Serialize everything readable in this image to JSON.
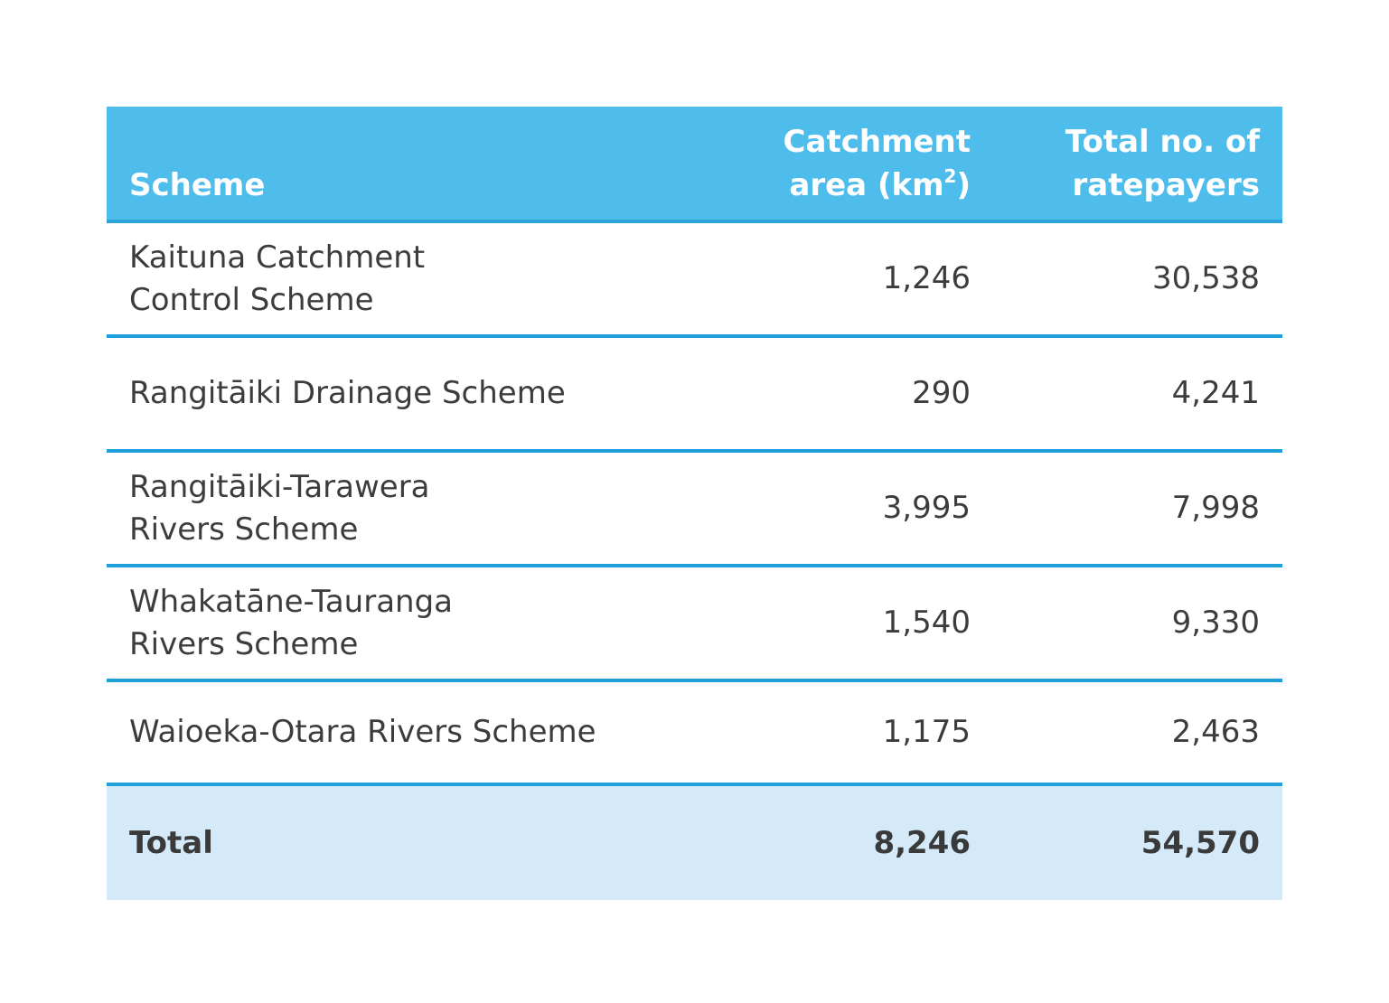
{
  "table": {
    "headers": {
      "scheme": "Scheme",
      "area_line1": "Catchment",
      "area_line2_prefix": "area (km",
      "area_superscript": "2",
      "area_line2_suffix": ")",
      "rate_line1": "Total no. of",
      "rate_line2": "ratepayers"
    },
    "rows": [
      {
        "scheme_line1": "Kaituna Catchment",
        "scheme_line2": "Control Scheme",
        "area": "1,246",
        "ratepayers": "30,538"
      },
      {
        "scheme_line1": "Rangitāiki Drainage Scheme",
        "scheme_line2": "",
        "area": "290",
        "ratepayers": "4,241"
      },
      {
        "scheme_line1": "Rangitāiki-Tarawera",
        "scheme_line2": "Rivers Scheme",
        "area": "3,995",
        "ratepayers": "7,998"
      },
      {
        "scheme_line1": "Whakatāne-Tauranga",
        "scheme_line2": "Rivers Scheme",
        "area": "1,540",
        "ratepayers": "9,330"
      },
      {
        "scheme_line1": "Waioeka-Otara Rivers Scheme",
        "scheme_line2": "",
        "area": "1,175",
        "ratepayers": "2,463"
      }
    ],
    "total": {
      "label": "Total",
      "area": "8,246",
      "ratepayers": "54,570"
    }
  },
  "colors": {
    "header_bg": "#4fbdec",
    "divider": "#1fa0db",
    "total_bg": "#d4eaf9",
    "text": "#3c3c3c"
  }
}
